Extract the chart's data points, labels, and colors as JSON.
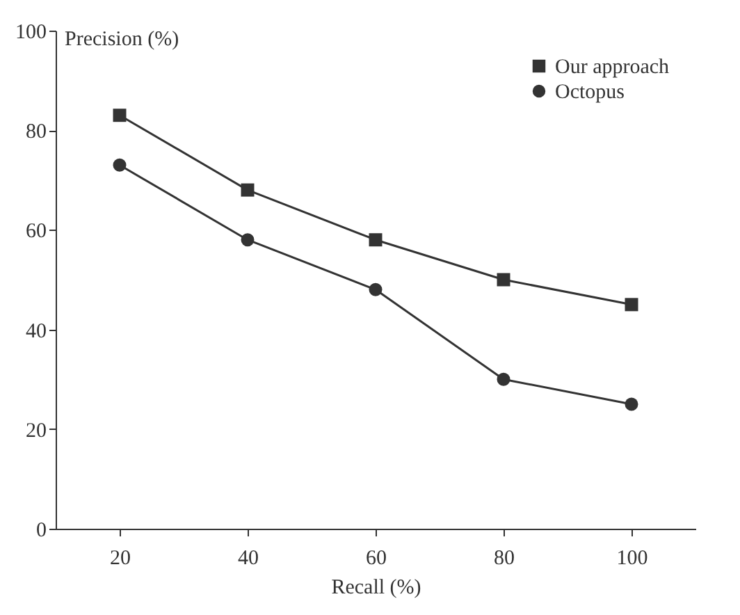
{
  "chart_data": {
    "type": "line",
    "xlabel": "Recall (%)",
    "ylabel": "Precision (%)",
    "x": [
      20,
      40,
      60,
      80,
      100
    ],
    "series": [
      {
        "name": "Our approach",
        "color": "#333333",
        "marker": "square",
        "values": [
          83,
          68,
          58,
          50,
          45
        ]
      },
      {
        "name": "Octopus",
        "color": "#333333",
        "marker": "circle",
        "values": [
          73,
          58,
          48,
          30,
          25
        ]
      }
    ],
    "xlim": [
      10,
      110
    ],
    "xticks": [
      20,
      40,
      60,
      80,
      100
    ],
    "ylim": [
      0,
      100
    ],
    "yticks": [
      0,
      20,
      40,
      60,
      80,
      100
    ],
    "grid": false,
    "legend": "top right",
    "line_style": "solid"
  }
}
